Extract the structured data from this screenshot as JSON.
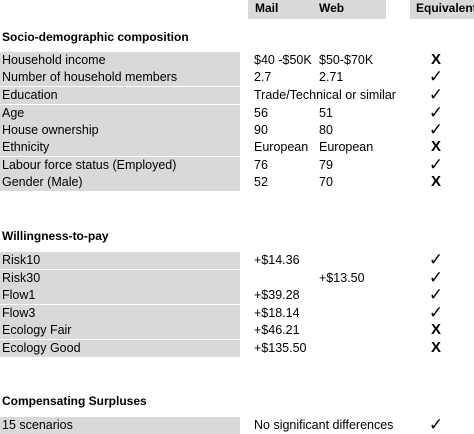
{
  "header": {
    "mail": "Mail",
    "web": "Web",
    "equivalent": "Equivalent"
  },
  "sections": [
    {
      "title": "Socio-demographic composition",
      "rows": [
        {
          "label": "Household income",
          "mail": "$40 -$50K",
          "web": "$50-$70K",
          "eq": "X"
        },
        {
          "label": "Number of household members",
          "mail": "2.7",
          "web": "2.71",
          "eq": "✓"
        },
        {
          "label": "Education",
          "merged": "Trade/Technical or similar",
          "eq": "✓"
        },
        {
          "label": "Age",
          "mail": "56",
          "web": "51",
          "eq": "✓"
        },
        {
          "label": "House ownership",
          "mail": "90",
          "web": "80",
          "eq": "✓"
        },
        {
          "label": "Ethnicity",
          "mail": "European",
          "web": "European",
          "eq": "X"
        },
        {
          "label": "Labour force status (Employed)",
          "mail": "76",
          "web": "79",
          "eq": "✓"
        },
        {
          "label": "Gender (Male)",
          "mail": "52",
          "web": "70",
          "eq": "X"
        }
      ]
    },
    {
      "title": "Willingness-to-pay",
      "rows": [
        {
          "label": "Risk10",
          "mail": "+$14.36",
          "web": "",
          "eq": "✓"
        },
        {
          "label": "Risk30",
          "mail": "",
          "web": "+$13.50",
          "eq": "✓"
        },
        {
          "label": "Flow1",
          "mail": "+$39.28",
          "web": "",
          "eq": "✓"
        },
        {
          "label": "Flow3",
          "mail": "+$18.14",
          "web": "",
          "eq": "✓"
        },
        {
          "label": "Ecology Fair",
          "mail": "+$46.21",
          "web": "",
          "eq": "X"
        },
        {
          "label": "Ecology Good",
          "mail": "+$135.50",
          "web": "",
          "eq": "X"
        }
      ]
    },
    {
      "title": "Compensating Surpluses",
      "rows": [
        {
          "label": "15 scenarios",
          "merged": "No significant differences",
          "eq": "✓"
        }
      ]
    }
  ]
}
